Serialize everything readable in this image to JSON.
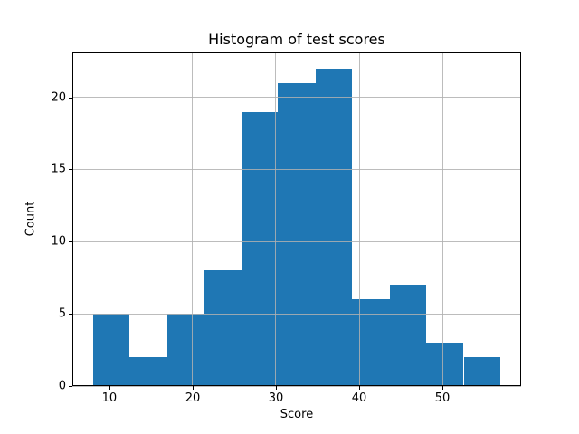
{
  "chart_data": {
    "type": "bar",
    "subtype": "histogram",
    "title": "Histogram of test scores",
    "xlabel": "Score",
    "ylabel": "Count",
    "bin_edges": [
      8.0,
      12.45,
      16.91,
      21.36,
      25.82,
      30.27,
      34.73,
      39.18,
      43.64,
      48.09,
      52.55,
      57.0
    ],
    "counts": [
      5,
      2,
      5,
      8,
      19,
      21,
      22,
      6,
      7,
      3,
      2
    ],
    "x_ticks": [
      10,
      20,
      30,
      40,
      50
    ],
    "y_ticks": [
      0,
      5,
      10,
      15,
      20
    ],
    "xlim": [
      5.55,
      59.45
    ],
    "ylim": [
      0,
      23.1
    ],
    "grid": true,
    "legend": "none",
    "bar_color": "#1f77b4",
    "grid_color": "#b0b0b0"
  }
}
